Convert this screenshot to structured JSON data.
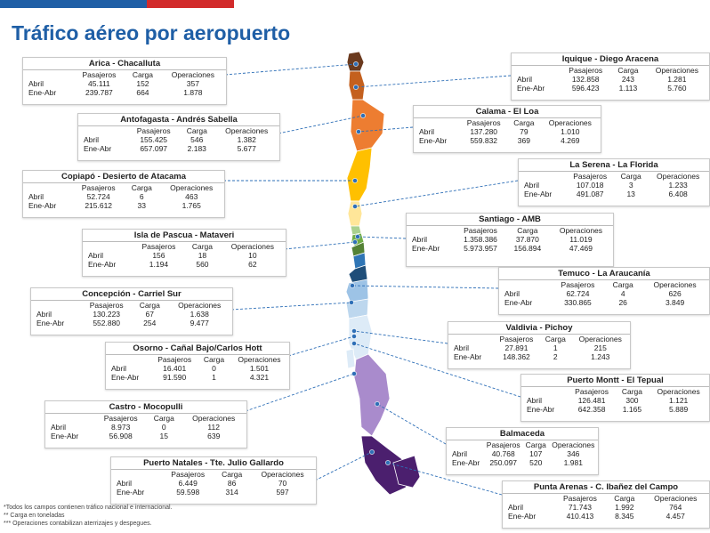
{
  "title": "Tráfico aéreo por aeropuerto",
  "colors": {
    "accent_blue": "#1f5fa6",
    "accent_red": "#d22b2b"
  },
  "airports": [
    {
      "name": "Arica - Chacalluta",
      "headers": [
        "Pasajeros",
        "Carga",
        "Operaciones"
      ],
      "rows": [
        {
          "label": "Abril",
          "values": [
            "45.111",
            "152",
            "357"
          ]
        },
        {
          "label": "Ene-Abr",
          "values": [
            "239.787",
            "664",
            "1.878"
          ]
        }
      ]
    },
    {
      "name": "Iquique - Diego Aracena",
      "headers": [
        "Pasajeros",
        "Carga",
        "Operaciones"
      ],
      "rows": [
        {
          "label": "Abril",
          "values": [
            "132.858",
            "243",
            "1.281"
          ]
        },
        {
          "label": "Ene-Abr",
          "values": [
            "596.423",
            "1.113",
            "5.760"
          ]
        }
      ]
    },
    {
      "name": "Antofagasta - Andrés Sabella",
      "headers": [
        "Pasajeros",
        "Carga",
        "Operaciones"
      ],
      "rows": [
        {
          "label": "Abril",
          "values": [
            "155.425",
            "546",
            "1.382"
          ]
        },
        {
          "label": "Ene-Abr",
          "values": [
            "657.097",
            "2.183",
            "5.677"
          ]
        }
      ]
    },
    {
      "name": "Calama - El Loa",
      "headers": [
        "Pasajeros",
        "Carga",
        "Operaciones"
      ],
      "rows": [
        {
          "label": "Abril",
          "values": [
            "137.280",
            "79",
            "1.010"
          ]
        },
        {
          "label": "Ene-Abr",
          "values": [
            "559.832",
            "369",
            "4.269"
          ]
        }
      ]
    },
    {
      "name": "Copiapó - Desierto de Atacama",
      "headers": [
        "Pasajeros",
        "Carga",
        "Operaciones"
      ],
      "rows": [
        {
          "label": "Abril",
          "values": [
            "52.724",
            "6",
            "463"
          ]
        },
        {
          "label": "Ene-Abr",
          "values": [
            "215.612",
            "33",
            "1.765"
          ]
        }
      ]
    },
    {
      "name": "La Serena - La Florida",
      "headers": [
        "Pasajeros",
        "Carga",
        "Operaciones"
      ],
      "rows": [
        {
          "label": "Abril",
          "values": [
            "107.018",
            "3",
            "1.233"
          ]
        },
        {
          "label": "Ene-Abr",
          "values": [
            "491.087",
            "13",
            "6.408"
          ]
        }
      ]
    },
    {
      "name": "Santiago - AMB",
      "headers": [
        "Pasajeros",
        "Carga",
        "Operaciones"
      ],
      "rows": [
        {
          "label": "Abril",
          "values": [
            "1.358.386",
            "37.870",
            "11.019"
          ]
        },
        {
          "label": "Ene-Abr",
          "values": [
            "5.973.957",
            "156.894",
            "47.469"
          ]
        }
      ]
    },
    {
      "name": "Isla de Pascua - Mataveri",
      "headers": [
        "Pasajeros",
        "Carga",
        "Operaciones"
      ],
      "rows": [
        {
          "label": "Abril",
          "values": [
            "156",
            "18",
            "10"
          ]
        },
        {
          "label": "Ene-Abr",
          "values": [
            "1.194",
            "560",
            "62"
          ]
        }
      ]
    },
    {
      "name": "Temuco - La Araucanía",
      "headers": [
        "Pasajeros",
        "Carga",
        "Operaciones"
      ],
      "rows": [
        {
          "label": "Abril",
          "values": [
            "62.724",
            "4",
            "626"
          ]
        },
        {
          "label": "Ene-Abr",
          "values": [
            "330.865",
            "26",
            "3.849"
          ]
        }
      ]
    },
    {
      "name": "Concepción - Carriel Sur",
      "headers": [
        "Pasajeros",
        "Carga",
        "Operaciones"
      ],
      "rows": [
        {
          "label": "Abril",
          "values": [
            "130.223",
            "67",
            "1.638"
          ]
        },
        {
          "label": "Ene-Abr",
          "values": [
            "552.880",
            "254",
            "9.477"
          ]
        }
      ]
    },
    {
      "name": "Valdivia - Pichoy",
      "headers": [
        "Pasajeros",
        "Carga",
        "Operaciones"
      ],
      "rows": [
        {
          "label": "Abril",
          "values": [
            "27.891",
            "1",
            "215"
          ]
        },
        {
          "label": "Ene-Abr",
          "values": [
            "148.362",
            "2",
            "1.243"
          ]
        }
      ]
    },
    {
      "name": "Osorno - Cañal Bajo/Carlos Hott",
      "headers": [
        "Pasajeros",
        "Carga",
        "Operaciones"
      ],
      "rows": [
        {
          "label": "Abril",
          "values": [
            "16.401",
            "0",
            "1.501"
          ]
        },
        {
          "label": "Ene-Abr",
          "values": [
            "91.590",
            "1",
            "4.321"
          ]
        }
      ]
    },
    {
      "name": "Puerto Montt - El Tepual",
      "headers": [
        "Pasajeros",
        "Carga",
        "Operaciones"
      ],
      "rows": [
        {
          "label": "Abril",
          "values": [
            "126.481",
            "300",
            "1.121"
          ]
        },
        {
          "label": "Ene-Abr",
          "values": [
            "642.358",
            "1.165",
            "5.889"
          ]
        }
      ]
    },
    {
      "name": "Castro - Mocopulli",
      "headers": [
        "Pasajeros",
        "Carga",
        "Operaciones"
      ],
      "rows": [
        {
          "label": "Abril",
          "values": [
            "8.973",
            "0",
            "112"
          ]
        },
        {
          "label": "Ene-Abr",
          "values": [
            "56.908",
            "15",
            "639"
          ]
        }
      ]
    },
    {
      "name": "Balmaceda",
      "headers": [
        "Pasajeros",
        "Carga",
        "Operaciones"
      ],
      "rows": [
        {
          "label": "Abril",
          "values": [
            "40.768",
            "107",
            "346"
          ]
        },
        {
          "label": "Ene-Abr",
          "values": [
            "250.097",
            "520",
            "1.981"
          ]
        }
      ]
    },
    {
      "name": "Puerto Natales - Tte. Julio Gallardo",
      "headers": [
        "Pasajeros",
        "Carga",
        "Operaciones"
      ],
      "rows": [
        {
          "label": "Abril",
          "values": [
            "6.449",
            "86",
            "70"
          ]
        },
        {
          "label": "Ene-Abr",
          "values": [
            "59.598",
            "314",
            "597"
          ]
        }
      ]
    },
    {
      "name": "Punta Arenas - C. Ibañez del Campo",
      "headers": [
        "Pasajeros",
        "Carga",
        "Operaciones"
      ],
      "rows": [
        {
          "label": "Abril",
          "values": [
            "71.743",
            "1.992",
            "764"
          ]
        },
        {
          "label": "Ene-Abr",
          "values": [
            "410.413",
            "8.345",
            "4.457"
          ]
        }
      ]
    }
  ],
  "footnotes": [
    "*Todos los campos contienen tráfico nacional e internacional.",
    "** Carga en toneladas",
    "*** Operaciones contabilizan aterrizajes y despegues."
  ]
}
